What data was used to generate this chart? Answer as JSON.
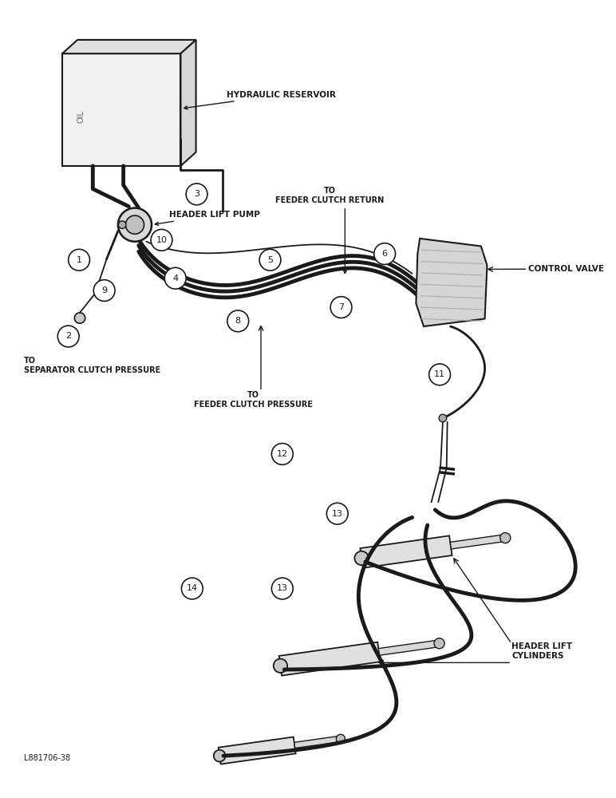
{
  "bg_color": "#ffffff",
  "line_color": "#1a1a1a",
  "figsize": [
    7.72,
    10.0
  ],
  "dpi": 100,
  "labels": {
    "hydraulic_reservoir": "HYDRAULIC RESERVOIR",
    "header_lift_pump": "HEADER LIFT PUMP",
    "to_feeder_clutch_return": "TO\nFEEDER CLUTCH RETURN",
    "control_valve": "CONTROL VALVE",
    "to_separator_clutch": "TO\nSEPARATOR CLUTCH PRESSURE",
    "to_feeder_clutch_pressure": "TO\nFEEDER CLUTCH PRESSURE",
    "header_lift_cylinders": "HEADER LIFT\nCYLINDERS",
    "part_num": "L881706-38"
  }
}
